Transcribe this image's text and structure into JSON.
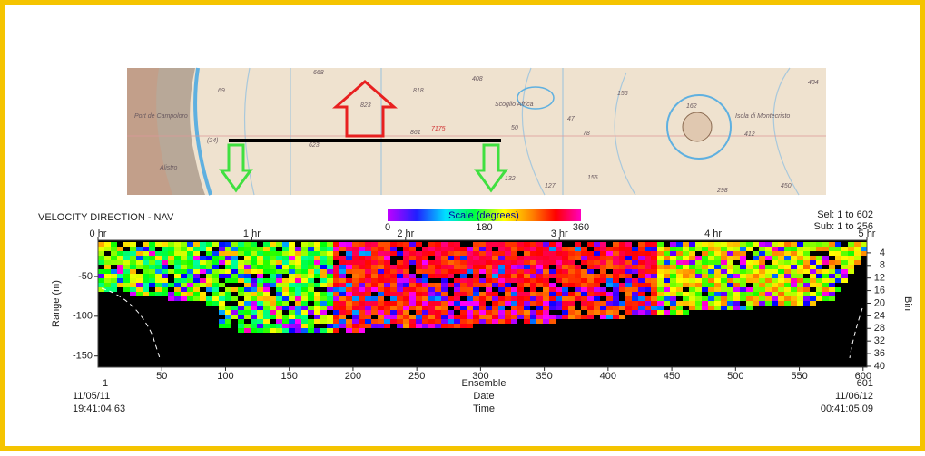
{
  "map": {
    "labels": [
      "668",
      "69",
      "818",
      "408",
      "823",
      "156",
      "434",
      "Port de Campoloro",
      "Scoglio Africa",
      "7175",
      "861",
      "623",
      "50",
      "47",
      "78",
      "162",
      "Isola di Montecristo",
      "412",
      "(24)",
      "Alistro",
      "127",
      "155",
      "132",
      "298",
      "450"
    ]
  },
  "plot": {
    "title": "VELOCITY DIRECTION - NAV",
    "sel": "Sel: 1 to 602",
    "sub": "Sub: 1 to 256",
    "scale": {
      "title": "Scale (degrees)",
      "lim": [
        0,
        360
      ],
      "ticks": [
        0,
        180,
        360
      ]
    },
    "top_axis": {
      "lim": [
        0,
        5
      ],
      "ticks": [
        {
          "value": 0,
          "label": "0 hr"
        },
        {
          "value": 1,
          "label": "1 hr"
        },
        {
          "value": 2,
          "label": "2 hr"
        },
        {
          "value": 3,
          "label": "3 hr"
        },
        {
          "value": 4,
          "label": "4 hr"
        },
        {
          "value": 5,
          "label": "5 hr"
        }
      ]
    },
    "xlim": [
      0,
      603
    ],
    "xticks": [
      50,
      100,
      150,
      200,
      250,
      300,
      350,
      400,
      450,
      500,
      550,
      600
    ],
    "x_label": "Ensemble",
    "row_labels": [
      "Date",
      "Time"
    ],
    "ylabel": "Range (m)",
    "ylim": [
      -164,
      -4.5
    ],
    "yticks": [
      -50,
      -100,
      -150
    ],
    "y2label": "Bin",
    "y2lim": [
      0,
      40.3
    ],
    "y2ticks": [
      4,
      8,
      12,
      16,
      20,
      24,
      28,
      32,
      36,
      40
    ],
    "start": {
      "ensemble": 1,
      "date": "11/05/11",
      "time": "19:41:04.63"
    },
    "end": {
      "ensemble": 601,
      "date": "11/06/12",
      "time": "00:41:05.09"
    }
  }
}
